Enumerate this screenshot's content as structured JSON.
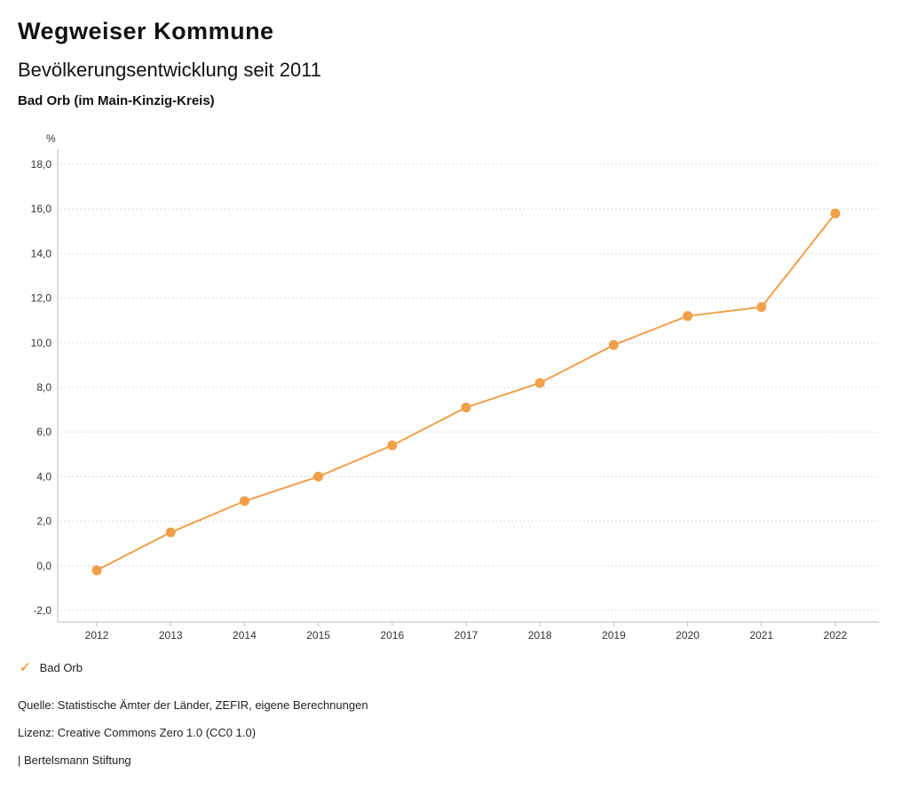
{
  "header": {
    "title": "Wegweiser Kommune",
    "subtitle": "Bevölkerungsentwicklung seit 2011",
    "region": "Bad Orb (im Main-Kinzig-Kreis)"
  },
  "legend": {
    "check_icon": "✓",
    "label": "Bad Orb"
  },
  "footer": {
    "source": "Quelle: Statistische Ämter der Länder, ZEFIR, eigene Berechnungen",
    "license": "Lizenz: Creative Commons Zero 1.0 (CC0 1.0)",
    "brand": "| Bertelsmann Stiftung"
  },
  "colors": {
    "accent": "#F0A04B",
    "grid": "#cccccc",
    "axis": "#bbbbbb",
    "tick_text": "#333333"
  },
  "chart_data": {
    "type": "line",
    "title": "Bevölkerungsentwicklung seit 2011",
    "series_name": "Bad Orb",
    "unit_label": "%",
    "categories": [
      "2012",
      "2013",
      "2014",
      "2015",
      "2016",
      "2017",
      "2018",
      "2019",
      "2020",
      "2021",
      "2022"
    ],
    "values": [
      -0.2,
      1.5,
      2.9,
      4.0,
      5.4,
      7.1,
      8.2,
      9.9,
      11.2,
      11.6,
      15.8
    ],
    "ylim": [
      -2.0,
      18.0
    ],
    "ytick_step": 2.0,
    "grid": "dotted-horizontal",
    "legend_position": "bottom-left"
  }
}
